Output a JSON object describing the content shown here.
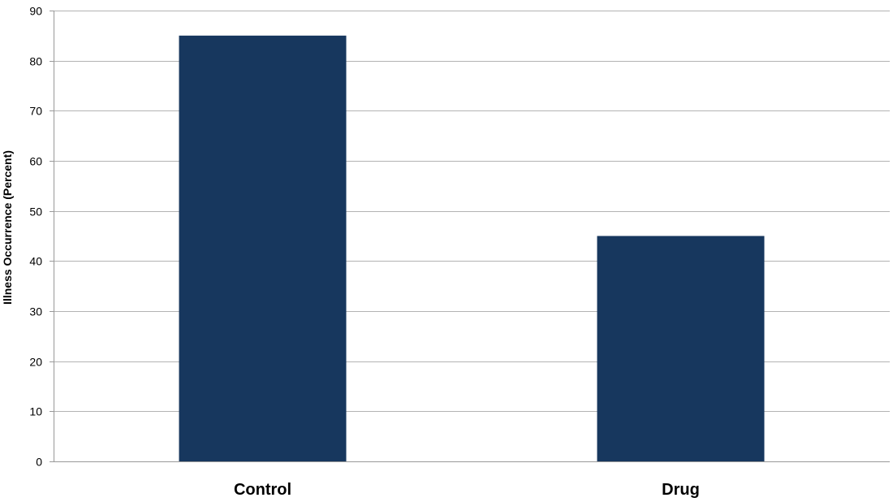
{
  "chart_data": {
    "type": "bar",
    "title": "",
    "xlabel": "",
    "ylabel": "Illness Occurrence (Percent)",
    "categories": [
      "Control",
      "Drug"
    ],
    "values": [
      85,
      45
    ],
    "ylim": [
      0,
      90
    ],
    "yticks": [
      0,
      10,
      20,
      30,
      40,
      50,
      60,
      70,
      80,
      90
    ],
    "grid": true,
    "legend": "none",
    "colors": {
      "bar": "#17375e",
      "grid": "#b3b3b3",
      "axis": "#999999"
    }
  }
}
